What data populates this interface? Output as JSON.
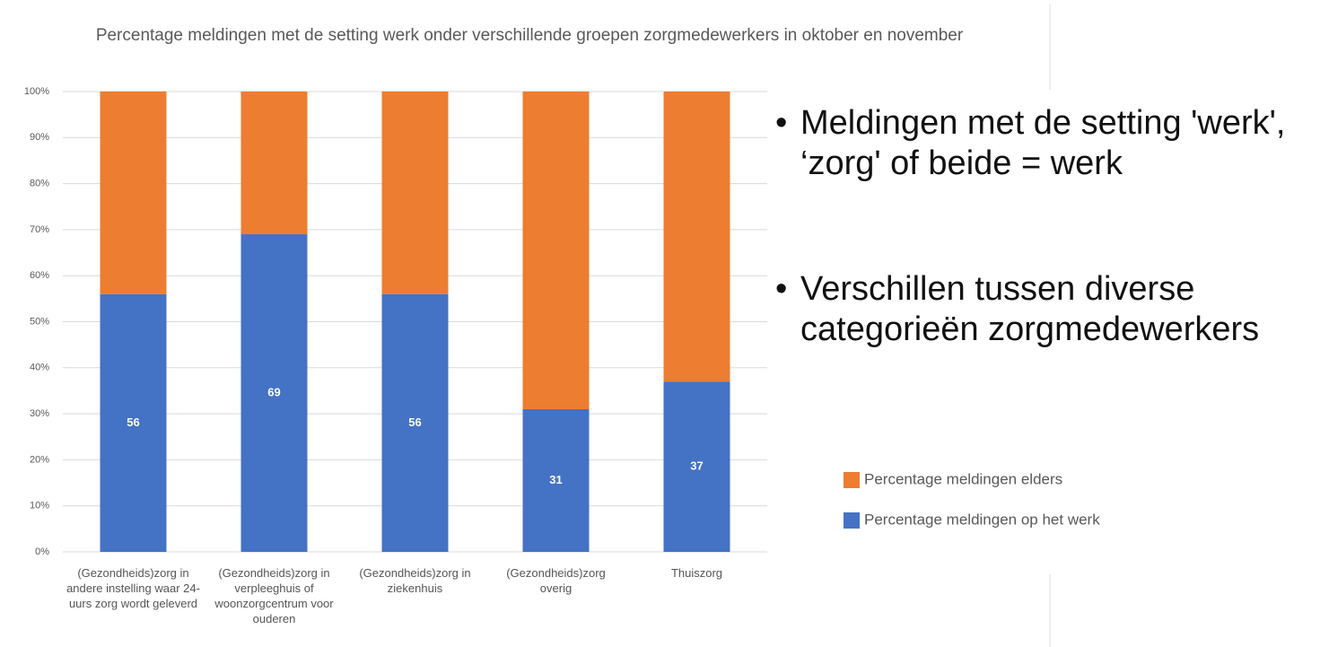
{
  "chart_data": {
    "type": "stacked-bar",
    "title": "Percentage meldingen met de setting werk onder verschillende groepen zorgmedewerkers in oktober en november",
    "categories": [
      "(Gezondheids)zorg in andere instelling waar 24-uurs zorg wordt geleverd",
      "(Gezondheids)zorg in verpleeghuis of woonzorgcentrum voor ouderen",
      "(Gezondheids)zorg in ziekenhuis",
      "(Gezondheids)zorg overig",
      "Thuiszorg"
    ],
    "series": [
      {
        "name": "Percentage meldingen op het werk",
        "color": "#4472c4",
        "values": [
          56,
          69,
          56,
          31,
          37
        ]
      },
      {
        "name": "Percentage meldingen elders",
        "color": "#ed7d31",
        "values": [
          44,
          31,
          44,
          69,
          63
        ]
      }
    ],
    "ylim": [
      0,
      100
    ],
    "yticks": [
      {
        "value": 0,
        "label": "0%"
      },
      {
        "value": 10,
        "label": "10%"
      },
      {
        "value": 20,
        "label": "20%"
      },
      {
        "value": 30,
        "label": "30%"
      },
      {
        "value": 40,
        "label": "40%"
      },
      {
        "value": 50,
        "label": "50%"
      },
      {
        "value": 60,
        "label": "60%"
      },
      {
        "value": 70,
        "label": "70%"
      },
      {
        "value": 80,
        "label": "80%"
      },
      {
        "value": 90,
        "label": "90%"
      },
      {
        "value": 100,
        "label": "100%"
      }
    ],
    "grid": true,
    "legend": "right"
  },
  "bullets": [
    "Meldingen met de setting 'werk', ‘zorg' of beide = werk",
    "Verschillen tussen diverse categorieën zorgmedewerkers"
  ]
}
